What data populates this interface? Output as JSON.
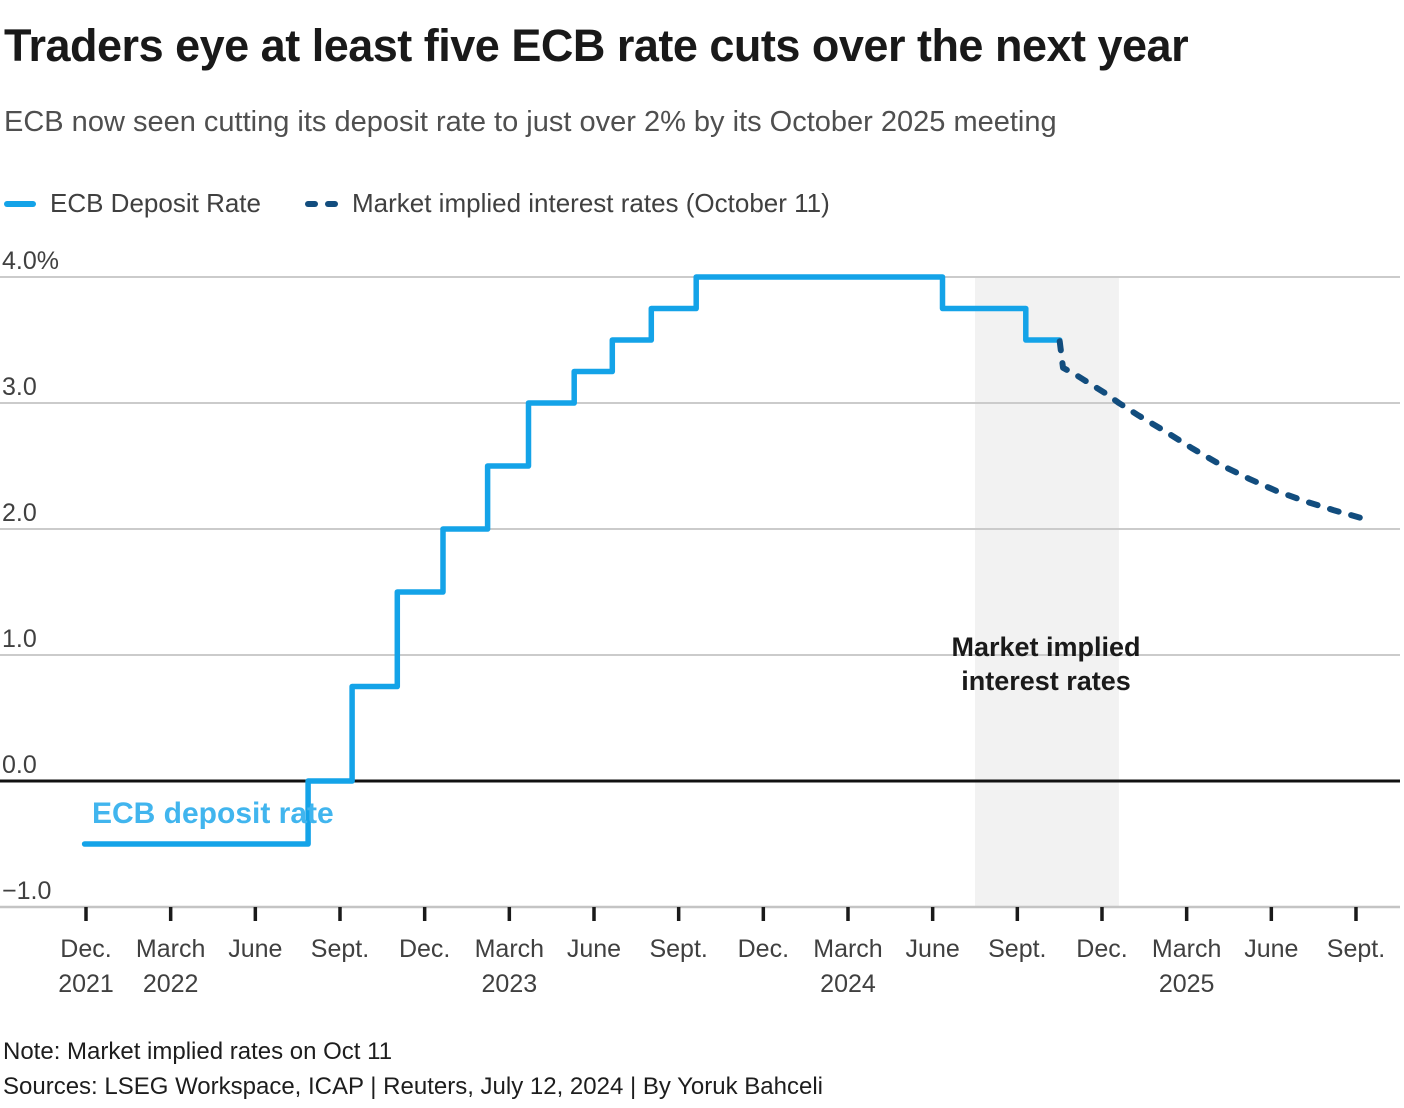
{
  "header": {
    "title": "Traders eye at least five ECB rate cuts over the next year",
    "subtitle": "ECB now seen cutting its deposit rate to just over 2% by its October 2025 meeting"
  },
  "legend": {
    "items": [
      {
        "label": "ECB Deposit Rate",
        "style": "solid",
        "color": "#14a3e8"
      },
      {
        "label": "Market implied interest rates (October 11)",
        "style": "dashed",
        "color": "#124d7e"
      }
    ]
  },
  "annotations": {
    "band_label_line1": "Market implied",
    "band_label_line2": "interest rates",
    "series_label": "ECB deposit rate"
  },
  "footer": {
    "note": "Note: Market implied rates on Oct 11",
    "sources": "Sources: LSEG Workspace, ICAP | Reuters, July 12, 2024 | By Yoruk Bahceli"
  },
  "chart_data": {
    "type": "line",
    "x_unit": "months_since_dec_2021",
    "xlim": [
      -0.1,
      46.7
    ],
    "ylim": [
      -1,
      4
    ],
    "grid": true,
    "colors": {
      "grid": "#cbcbcb",
      "zero_line": "#121212",
      "axis_line": "#c4c4c4",
      "tick": "#1a1a1a",
      "tick_label": "#404040",
      "band": "#f2f2f2",
      "solid_series": "#14a3e8",
      "dashed_series": "#124d7e"
    },
    "yticks": [
      {
        "v": 4,
        "label": "4.0%"
      },
      {
        "v": 3,
        "label": "3.0"
      },
      {
        "v": 2,
        "label": "2.0"
      },
      {
        "v": 1,
        "label": "1.0"
      },
      {
        "v": 0,
        "label": "0.0"
      },
      {
        "v": -1,
        "label": "−1.0"
      }
    ],
    "xticks": [
      {
        "t": 0,
        "label": "Dec.",
        "year": "2021"
      },
      {
        "t": 3,
        "label": "March",
        "year": "2022"
      },
      {
        "t": 6,
        "label": "June"
      },
      {
        "t": 9,
        "label": "Sept."
      },
      {
        "t": 12,
        "label": "Dec."
      },
      {
        "t": 15,
        "label": "March",
        "year": "2023"
      },
      {
        "t": 18,
        "label": "June"
      },
      {
        "t": 21,
        "label": "Sept."
      },
      {
        "t": 24,
        "label": "Dec."
      },
      {
        "t": 27,
        "label": "March",
        "year": "2024"
      },
      {
        "t": 30,
        "label": "June"
      },
      {
        "t": 33,
        "label": "Sept."
      },
      {
        "t": 36,
        "label": "Dec."
      },
      {
        "t": 39,
        "label": "March",
        "year": "2025"
      },
      {
        "t": 42,
        "label": "June"
      },
      {
        "t": 45,
        "label": "Sept."
      }
    ],
    "band": {
      "t0": 31.5,
      "t1": 36.6
    },
    "series": [
      {
        "name": "ECB Deposit Rate",
        "style": "solid",
        "points": [
          [
            -0.05,
            -0.5
          ],
          [
            7.87,
            -0.5
          ],
          [
            7.87,
            0.0
          ],
          [
            9.43,
            0.0
          ],
          [
            9.43,
            0.75
          ],
          [
            11.03,
            0.75
          ],
          [
            11.03,
            1.5
          ],
          [
            12.65,
            1.5
          ],
          [
            12.65,
            2.0
          ],
          [
            14.23,
            2.0
          ],
          [
            14.23,
            2.5
          ],
          [
            15.68,
            2.5
          ],
          [
            15.68,
            3.0
          ],
          [
            17.3,
            3.0
          ],
          [
            17.3,
            3.25
          ],
          [
            18.65,
            3.25
          ],
          [
            18.65,
            3.5
          ],
          [
            20.03,
            3.5
          ],
          [
            20.03,
            3.75
          ],
          [
            21.62,
            3.75
          ],
          [
            21.62,
            4.0
          ],
          [
            30.35,
            4.0
          ],
          [
            30.35,
            3.75
          ],
          [
            33.3,
            3.75
          ],
          [
            33.3,
            3.5
          ],
          [
            34.5,
            3.5
          ]
        ]
      },
      {
        "name": "Market implied interest rates (October 11)",
        "style": "dashed",
        "points": [
          [
            34.5,
            3.49
          ],
          [
            34.62,
            3.28
          ],
          [
            35.1,
            3.22
          ],
          [
            35.6,
            3.15
          ],
          [
            36.1,
            3.08
          ],
          [
            36.6,
            3.0
          ],
          [
            37.3,
            2.9
          ],
          [
            38.2,
            2.78
          ],
          [
            39.2,
            2.64
          ],
          [
            40.2,
            2.51
          ],
          [
            41.2,
            2.4
          ],
          [
            42.2,
            2.3
          ],
          [
            43.2,
            2.22
          ],
          [
            44.2,
            2.15
          ],
          [
            45.15,
            2.09
          ]
        ]
      }
    ]
  }
}
